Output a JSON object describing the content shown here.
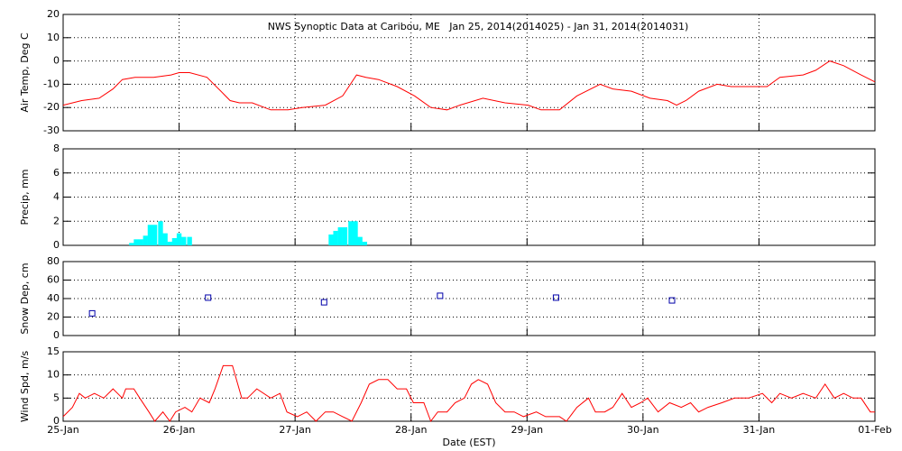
{
  "chart_data": [
    {
      "type": "line",
      "title": "NWS Synoptic Data at Caribou, ME   Jan 25, 2014(2014025) - Jan 31, 2014(2014031)",
      "ylabel": "Air Temp, Deg C",
      "grid": true,
      "xlim": [
        0,
        7
      ],
      "xticks": [
        0,
        1,
        2,
        3,
        4,
        5,
        6,
        7
      ],
      "ylim": [
        -30,
        20
      ],
      "yticks": [
        -30,
        -20,
        -10,
        0,
        10,
        20
      ],
      "series": [
        {
          "name": "Air Temp",
          "color": "#ff0000",
          "x": [
            0,
            0.16,
            0.31,
            0.43,
            0.51,
            0.62,
            0.78,
            0.93,
            1.0,
            1.09,
            1.24,
            1.36,
            1.44,
            1.52,
            1.63,
            1.79,
            1.94,
            2.06,
            2.26,
            2.41,
            2.53,
            2.61,
            2.72,
            2.88,
            3.03,
            3.17,
            3.31,
            3.42,
            3.62,
            3.81,
            4.01,
            4.12,
            4.28,
            4.43,
            4.63,
            4.74,
            4.9,
            5.06,
            5.21,
            5.29,
            5.37,
            5.48,
            5.64,
            5.76,
            5.91,
            6.07,
            6.18,
            6.38,
            6.49,
            6.61,
            6.73,
            6.88,
            7.0
          ],
          "values": [
            -19,
            -17,
            -16,
            -12,
            -8,
            -7,
            -7,
            -6,
            -5,
            -5,
            -7,
            -13,
            -17,
            -18,
            -18,
            -21,
            -21,
            -20,
            -19,
            -15,
            -6,
            -7,
            -8,
            -11,
            -15,
            -20,
            -21,
            -19,
            -16,
            -18,
            -19,
            -21,
            -21,
            -15,
            -10,
            -12,
            -13,
            -16,
            -17,
            -19,
            -17,
            -13,
            -10,
            -11,
            -11,
            -11,
            -7,
            -6,
            -4,
            0,
            -2,
            -6,
            -9
          ]
        }
      ]
    },
    {
      "type": "bar",
      "ylabel": "Precip, mm",
      "grid": true,
      "xlim": [
        0,
        7
      ],
      "xticks": [
        0,
        1,
        2,
        3,
        4,
        5,
        6,
        7
      ],
      "ylim": [
        0,
        8
      ],
      "yticks": [
        0,
        2,
        4,
        6,
        8
      ],
      "series": [
        {
          "name": "Precip",
          "color": "#00ffff",
          "x": [
            0.59,
            0.63,
            0.67,
            0.71,
            0.75,
            0.79,
            0.84,
            0.88,
            0.92,
            0.96,
            1.0,
            1.04,
            1.09,
            2.31,
            2.35,
            2.39,
            2.43,
            2.48,
            2.52,
            2.56,
            2.6
          ],
          "values": [
            0.2,
            0.5,
            0.5,
            0.8,
            1.7,
            1.7,
            2.0,
            1.0,
            0.3,
            0.6,
            1.0,
            0.7,
            0.7,
            0.9,
            1.2,
            1.5,
            1.5,
            2.0,
            2.0,
            0.7,
            0.3
          ]
        }
      ]
    },
    {
      "type": "scatter",
      "ylabel": "Snow Dep, cm",
      "grid": true,
      "xlim": [
        0,
        7
      ],
      "xticks": [
        0,
        1,
        2,
        3,
        4,
        5,
        6,
        7
      ],
      "ylim": [
        0,
        80
      ],
      "yticks": [
        0,
        20,
        40,
        60,
        80
      ],
      "series": [
        {
          "name": "Snow Depth",
          "color": "#0000aa",
          "x": [
            0.25,
            1.25,
            2.25,
            3.25,
            4.25,
            5.25
          ],
          "values": [
            24,
            41,
            36,
            43,
            41,
            38
          ]
        }
      ]
    },
    {
      "type": "line",
      "ylabel": "Wind Spd, m/s",
      "xlabel": "Date (EST)",
      "grid": true,
      "xlim": [
        0,
        7
      ],
      "xticks": [
        {
          "value": 0,
          "label": "25-Jan"
        },
        {
          "value": 1,
          "label": "26-Jan"
        },
        {
          "value": 2,
          "label": "27-Jan"
        },
        {
          "value": 3,
          "label": "28-Jan"
        },
        {
          "value": 4,
          "label": "29-Jan"
        },
        {
          "value": 5,
          "label": "30-Jan"
        },
        {
          "value": 6,
          "label": "31-Jan"
        },
        {
          "value": 7,
          "label": "01-Feb"
        }
      ],
      "ylim": [
        0,
        15
      ],
      "yticks": [
        0,
        5,
        10,
        15
      ],
      "series": [
        {
          "name": "Wind Speed",
          "color": "#ff0000",
          "x": [
            0,
            0.08,
            0.14,
            0.19,
            0.27,
            0.35,
            0.43,
            0.51,
            0.54,
            0.61,
            0.66,
            0.74,
            0.79,
            0.86,
            0.92,
            0.97,
            1.05,
            1.11,
            1.18,
            1.26,
            1.31,
            1.38,
            1.46,
            1.54,
            1.59,
            1.67,
            1.79,
            1.87,
            1.93,
            2.02,
            2.1,
            2.18,
            2.26,
            2.33,
            2.41,
            2.49,
            2.57,
            2.64,
            2.72,
            2.8,
            2.88,
            2.96,
            3.02,
            3.11,
            3.17,
            3.23,
            3.31,
            3.38,
            3.46,
            3.52,
            3.58,
            3.66,
            3.73,
            3.81,
            3.89,
            3.97,
            4.08,
            4.16,
            4.28,
            4.34,
            4.43,
            4.53,
            4.59,
            4.67,
            4.74,
            4.82,
            4.9,
            4.98,
            5.04,
            5.13,
            5.23,
            5.33,
            5.41,
            5.48,
            5.56,
            5.68,
            5.79,
            5.91,
            6.03,
            6.11,
            6.18,
            6.28,
            6.38,
            6.49,
            6.57,
            6.65,
            6.73,
            6.81,
            6.88,
            6.96,
            7.0
          ],
          "values": [
            1,
            3,
            6,
            5,
            6,
            5,
            7,
            5,
            7,
            7,
            5,
            2,
            0,
            2,
            0,
            2,
            3,
            2,
            5,
            4,
            7,
            12,
            12,
            5,
            5,
            7,
            5,
            6,
            2,
            1,
            2,
            0,
            2,
            2,
            1,
            0,
            4,
            8,
            9,
            9,
            7,
            7,
            4,
            4,
            0,
            2,
            2,
            4,
            5,
            8,
            9,
            8,
            4,
            2,
            2,
            1,
            2,
            1,
            1,
            0,
            3,
            5,
            2,
            2,
            3,
            6,
            3,
            4,
            5,
            2,
            4,
            3,
            4,
            2,
            3,
            4,
            5,
            5,
            6,
            4,
            6,
            5,
            6,
            5,
            8,
            5,
            6,
            5,
            5,
            2,
            2
          ]
        }
      ]
    }
  ]
}
